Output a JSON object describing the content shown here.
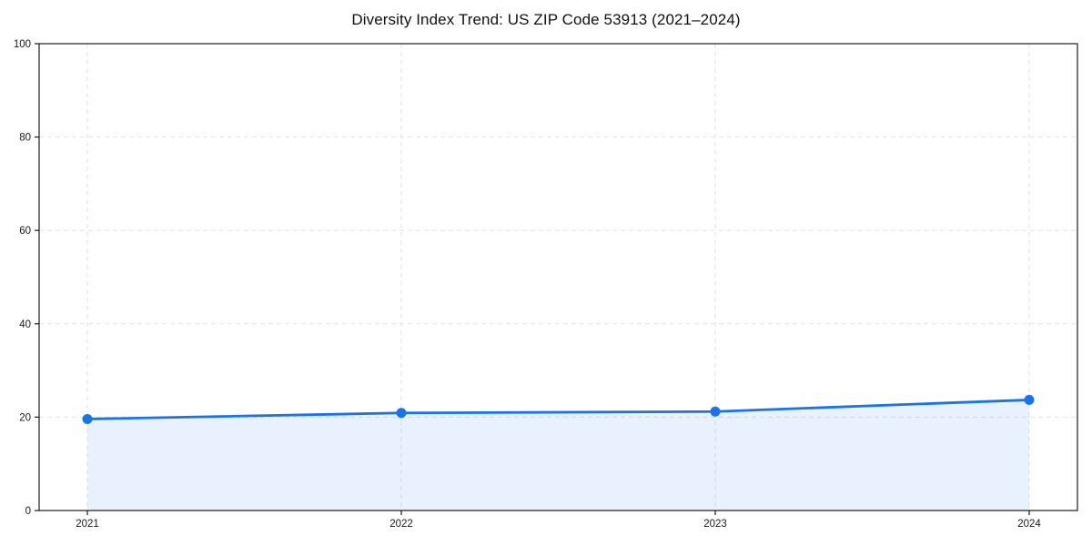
{
  "chart_data": {
    "type": "line",
    "title": "Diversity Index Trend: US ZIP Code 53913 (2021–2024)",
    "categories": [
      "2021",
      "2022",
      "2023",
      "2024"
    ],
    "series": [
      {
        "name": "Diversity Index",
        "values": [
          19.6,
          20.9,
          21.2,
          23.7
        ]
      }
    ],
    "xlabel": "",
    "ylabel": "",
    "ylim": [
      0,
      100
    ],
    "yticks": [
      0,
      20,
      40,
      60,
      80,
      100
    ],
    "grid": "dashed, horizontal at y-ticks and vertical at each year",
    "legend": "none",
    "area_fill": true,
    "colors": {
      "line": "#1a73e8",
      "marker": "#1a73e8",
      "area": "rgba(26,115,232,0.10)",
      "grid": "#e2e2e2",
      "spine": "#1a1a1a",
      "tick_label": "#1a1a1a",
      "background": "#ffffff"
    }
  }
}
